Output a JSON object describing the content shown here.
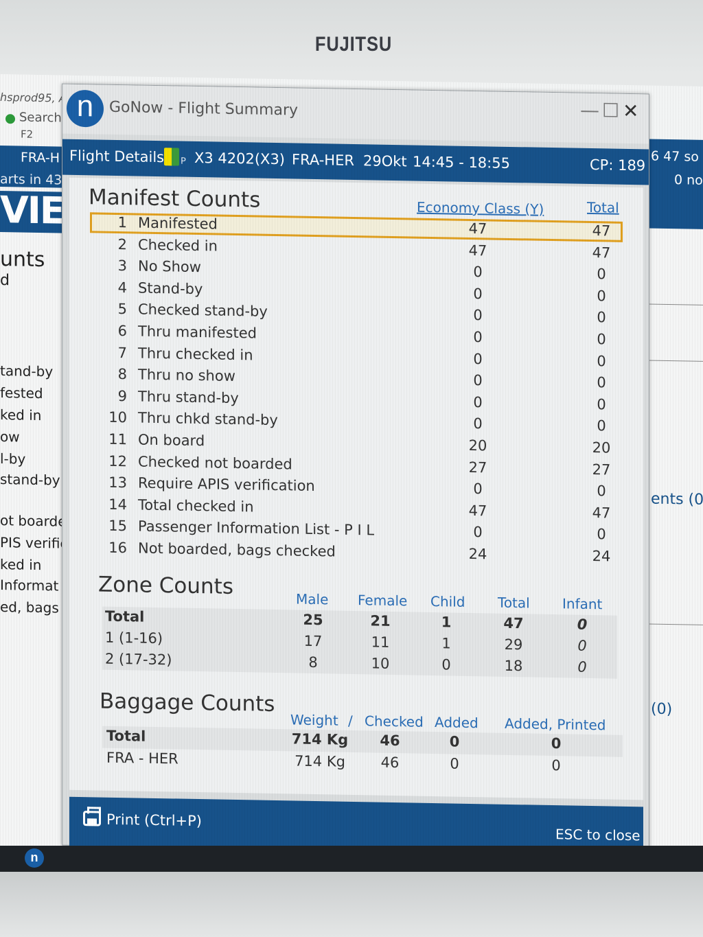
{
  "monitor": {
    "brand": "FUJITSU"
  },
  "background_app": {
    "user": "hsprod95, A",
    "search": "Search",
    "search_key": "F2",
    "route": "FRA-H",
    "departs": "arts in 43",
    "big_text": "VIE",
    "counts_heading": "unts",
    "d": "d",
    "left_labels": [
      "tand-by",
      "fested",
      "ked in",
      "ow",
      "l-by",
      "stand-by",
      "ot boarde",
      "PIS verific",
      "ked in",
      "Informat",
      "ed, bags c"
    ],
    "right_top1": "6  47 so",
    "right_top2": "0 no",
    "right_mid": "ents (0",
    "right_low": "(0)"
  },
  "window": {
    "app_title": "GoNow - Flight Summary",
    "min_label": "—",
    "max_label": "☐",
    "close_label": "✕"
  },
  "flight": {
    "label": "Flight Details |",
    "flag_suffix": "P",
    "flight": "X3 4202(X3)",
    "route": "FRA-HER",
    "date": "29Okt",
    "time": "14:45 - 18:55",
    "cp": "CP: 189"
  },
  "manifest": {
    "title": "Manifest Counts",
    "col_economy": "Economy Class (Y)",
    "col_total": "Total",
    "rows": [
      {
        "idx": "1",
        "label": "Manifested",
        "economy": "47",
        "total": "47"
      },
      {
        "idx": "2",
        "label": "Checked in",
        "economy": "47",
        "total": "47"
      },
      {
        "idx": "3",
        "label": "No Show",
        "economy": "0",
        "total": "0"
      },
      {
        "idx": "4",
        "label": "Stand-by",
        "economy": "0",
        "total": "0"
      },
      {
        "idx": "5",
        "label": "Checked stand-by",
        "economy": "0",
        "total": "0"
      },
      {
        "idx": "6",
        "label": "Thru manifested",
        "economy": "0",
        "total": "0"
      },
      {
        "idx": "7",
        "label": "Thru checked in",
        "economy": "0",
        "total": "0"
      },
      {
        "idx": "8",
        "label": "Thru no show",
        "economy": "0",
        "total": "0"
      },
      {
        "idx": "9",
        "label": "Thru stand-by",
        "economy": "0",
        "total": "0"
      },
      {
        "idx": "10",
        "label": "Thru chkd stand-by",
        "economy": "0",
        "total": "0"
      },
      {
        "idx": "11",
        "label": "On board",
        "economy": "20",
        "total": "20"
      },
      {
        "idx": "12",
        "label": "Checked not boarded",
        "economy": "27",
        "total": "27"
      },
      {
        "idx": "13",
        "label": "Require APIS verification",
        "economy": "0",
        "total": "0"
      },
      {
        "idx": "14",
        "label": "Total checked in",
        "economy": "47",
        "total": "47"
      },
      {
        "idx": "15",
        "label": "Passenger Information List - P I L",
        "economy": "0",
        "total": "0"
      },
      {
        "idx": "16",
        "label": "Not boarded, bags checked",
        "economy": "24",
        "total": "24"
      }
    ]
  },
  "zones": {
    "title": "Zone Counts",
    "cols": {
      "male": "Male",
      "female": "Female",
      "child": "Child",
      "total": "Total",
      "infant": "Infant"
    },
    "rows": [
      {
        "label": "Total",
        "male": "25",
        "female": "21",
        "child": "1",
        "total": "47",
        "infant": "0"
      },
      {
        "label": "1 (1-16)",
        "male": "17",
        "female": "11",
        "child": "1",
        "total": "29",
        "infant": "0"
      },
      {
        "label": "2 (17-32)",
        "male": "8",
        "female": "10",
        "child": "0",
        "total": "18",
        "infant": "0"
      }
    ]
  },
  "baggage": {
    "title": "Baggage Counts",
    "cols": {
      "weight": "Weight",
      "slash": "/",
      "checked": "Checked",
      "added": "Added",
      "added_printed": "Added, Printed"
    },
    "rows": [
      {
        "label": "Total",
        "weight": "714 Kg",
        "checked": "46",
        "added": "0",
        "added_printed": "0"
      },
      {
        "label": "FRA - HER",
        "weight": "714 Kg",
        "checked": "46",
        "added": "0",
        "added_printed": "0"
      }
    ]
  },
  "footer": {
    "print_label": "Print (Ctrl+P)",
    "esc_label": "ESC to close"
  },
  "taskbar": {
    "app_icon": "n"
  }
}
